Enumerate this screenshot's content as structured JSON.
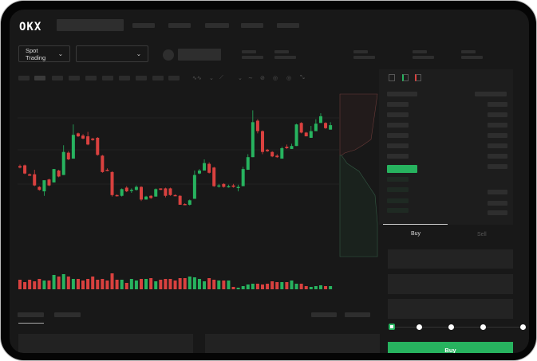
{
  "brand": {
    "logo": "OKX"
  },
  "toolbar": {
    "market_selector": "Spot Trading",
    "pair_selector": ""
  },
  "order_form": {
    "tabs": [
      "Buy",
      "Sell"
    ],
    "active_tab": "Buy",
    "leverage_steps": 5,
    "selected_step": 0
  },
  "colors": {
    "up": "#27b35f",
    "down": "#d9413f",
    "background": "#181818",
    "panel": "#1d1d1d"
  },
  "icons": [
    "chevron-down-icon",
    "indicator-icon",
    "line-tool-icon",
    "draw-icon",
    "camera-icon",
    "settings-icon",
    "fullscreen-icon",
    "orderbook-both-icon",
    "orderbook-bids-icon",
    "orderbook-asks-icon"
  ],
  "chart_data": {
    "type": "candlestick",
    "title": "",
    "xlabel": "",
    "ylabel": "",
    "ylim": [
      30,
      180
    ],
    "grid": true,
    "candles": [
      [
        96,
        94,
        98,
        93
      ],
      [
        97,
        86,
        98,
        85
      ],
      [
        85,
        83,
        86,
        83
      ],
      [
        85,
        70,
        91,
        69
      ],
      [
        68,
        64,
        69,
        63
      ],
      [
        62,
        77,
        62,
        56
      ],
      [
        78,
        70,
        79,
        69
      ],
      [
        74,
        92,
        74,
        92
      ],
      [
        90,
        82,
        91,
        81
      ],
      [
        84,
        115,
        124,
        84
      ],
      [
        114,
        105,
        116,
        104
      ],
      [
        106,
        138,
        152,
        106
      ],
      [
        140,
        136,
        141,
        135
      ],
      [
        137,
        133,
        139,
        132
      ],
      [
        136,
        125,
        142,
        124
      ],
      [
        133,
        131,
        134,
        130
      ],
      [
        134,
        111,
        135,
        110
      ],
      [
        110,
        88,
        111,
        87
      ],
      [
        91,
        90,
        93,
        89
      ],
      [
        88,
        57,
        89,
        55
      ],
      [
        57,
        56,
        58,
        55
      ],
      [
        56,
        65,
        66,
        55
      ],
      [
        67,
        62,
        69,
        61
      ],
      [
        63,
        64,
        66,
        60
      ],
      [
        64,
        68,
        70,
        63
      ],
      [
        68,
        51,
        69,
        49
      ],
      [
        51,
        55,
        56,
        51
      ],
      [
        56,
        53,
        57,
        52
      ],
      [
        55,
        65,
        66,
        55
      ],
      [
        66,
        64,
        66,
        64
      ],
      [
        66,
        56,
        67,
        54
      ],
      [
        66,
        57,
        67,
        56
      ],
      [
        57,
        56,
        58,
        56
      ],
      [
        56,
        44,
        57,
        44
      ],
      [
        45,
        44,
        46,
        44
      ],
      [
        44,
        50,
        51,
        43
      ],
      [
        52,
        84,
        90,
        52
      ],
      [
        86,
        90,
        92,
        85
      ],
      [
        90,
        100,
        105,
        90
      ],
      [
        99,
        87,
        101,
        86
      ],
      [
        94,
        69,
        95,
        68
      ],
      [
        69,
        70,
        72,
        67
      ],
      [
        72,
        68,
        73,
        67
      ],
      [
        69,
        69,
        71,
        67
      ],
      [
        70,
        68,
        72,
        67
      ],
      [
        68,
        68,
        71,
        62
      ],
      [
        69,
        92,
        95,
        69
      ],
      [
        91,
        108,
        112,
        91
      ],
      [
        108,
        155,
        171,
        108
      ],
      [
        157,
        143,
        159,
        140
      ],
      [
        143,
        115,
        144,
        112
      ],
      [
        118,
        116,
        119,
        115
      ],
      [
        115,
        109,
        116,
        108
      ],
      [
        110,
        108,
        112,
        107
      ],
      [
        106,
        120,
        122,
        106
      ],
      [
        122,
        120,
        125,
        119
      ],
      [
        119,
        123,
        126,
        119
      ],
      [
        123,
        152,
        153,
        123
      ],
      [
        154,
        141,
        155,
        140
      ],
      [
        141,
        136,
        142,
        136
      ],
      [
        134,
        143,
        150,
        134
      ],
      [
        143,
        153,
        159,
        143
      ],
      [
        154,
        163,
        167,
        154
      ],
      [
        154,
        147,
        155,
        146
      ],
      [
        145,
        151,
        155,
        145
      ]
    ],
    "volume": [
      12,
      9,
      12,
      10,
      13,
      11,
      11,
      18,
      16,
      19,
      16,
      13,
      13,
      11,
      13,
      16,
      12,
      13,
      11,
      20,
      12,
      12,
      8,
      13,
      11,
      13,
      13,
      14,
      10,
      12,
      13,
      13,
      11,
      14,
      14,
      16,
      15,
      13,
      10,
      14,
      12,
      11,
      11,
      11,
      3,
      2,
      4,
      6,
      7,
      7,
      6,
      7,
      10,
      9,
      9,
      9,
      11,
      7,
      7,
      4,
      3,
      4,
      5,
      4,
      4
    ]
  }
}
